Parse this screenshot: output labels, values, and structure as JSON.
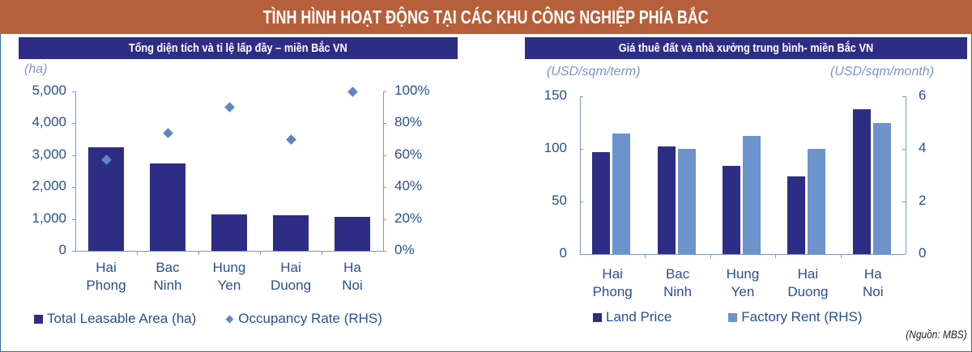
{
  "title": "TÌNH HÌNH HOẠT ĐỘNG TẠI CÁC KHU CÔNG NGHIỆP PHÍA BẮC",
  "source": "(Nguồn: MBS)",
  "colors": {
    "title_bg": "#b5603b",
    "subtitle_bg": "#2e2d85",
    "dark_bar": "#2e2d85",
    "light_bar": "#6d93cc",
    "diamond": "#5f86c4"
  },
  "left": {
    "subtitle": "Tổng diện tích và tỉ lệ lấp đầy – miền Bắc VN",
    "unit_left": "(ha)",
    "yticks_left": [
      "5,000",
      "4,000",
      "3,000",
      "2,000",
      "1,000",
      "0"
    ],
    "yticks_right": [
      "100%",
      "80%",
      "60%",
      "40%",
      "20%",
      "0%"
    ],
    "categories": [
      [
        "Hai",
        "Phong"
      ],
      [
        "Bac",
        "Ninh"
      ],
      [
        "Hung",
        "Yen"
      ],
      [
        "Hai",
        "Duong"
      ],
      [
        "Ha",
        "Noi"
      ]
    ],
    "legend": {
      "bar": "Total Leasable Area (ha)",
      "marker": "Occupancy Rate (RHS)"
    }
  },
  "right": {
    "subtitle": "Giá thuê đất và nhà xưởng trung bình- miền Bắc VN",
    "unit_left": "(USD/sqm/term)",
    "unit_right": "(USD/sqm/month)",
    "yticks_left": [
      "150",
      "100",
      "50",
      "0"
    ],
    "yticks_right": [
      "6",
      "4",
      "2",
      "0"
    ],
    "categories": [
      [
        "Hai",
        "Phong"
      ],
      [
        "Bac",
        "Ninh"
      ],
      [
        "Hung",
        "Yen"
      ],
      [
        "Hai",
        "Duong"
      ],
      [
        "Ha",
        "Noi"
      ]
    ],
    "legend": {
      "a": "Land Price",
      "b": "Factory Rent (RHS)"
    }
  },
  "chart_data": [
    {
      "type": "bar",
      "title": "Tổng diện tích và tỉ lệ lấp đầy – miền Bắc VN",
      "categories": [
        "Hai Phong",
        "Bac Ninh",
        "Hung Yen",
        "Hai Duong",
        "Ha Noi"
      ],
      "series": [
        {
          "name": "Total Leasable Area (ha)",
          "type": "bar",
          "axis": "left",
          "values": [
            3250,
            2740,
            1140,
            1120,
            1070
          ]
        },
        {
          "name": "Occupancy Rate (RHS)",
          "type": "scatter",
          "axis": "right",
          "values": [
            57,
            74,
            90,
            70,
            100
          ]
        }
      ],
      "ylabel": "(ha)",
      "ylim": [
        0,
        5000
      ],
      "y2lim": [
        0,
        100
      ],
      "y2format": "%",
      "grid": false,
      "legend_position": "bottom"
    },
    {
      "type": "bar",
      "title": "Giá thuê đất và nhà xưởng trung bình- miền Bắc VN",
      "categories": [
        "Hai Phong",
        "Bac Ninh",
        "Hung Yen",
        "Hai Duong",
        "Ha Noi"
      ],
      "series": [
        {
          "name": "Land Price",
          "axis": "left",
          "values": [
            97,
            102,
            84,
            74,
            138
          ]
        },
        {
          "name": "Factory Rent (RHS)",
          "axis": "right",
          "values": [
            4.6,
            4.0,
            4.5,
            4.0,
            5.0
          ]
        }
      ],
      "ylabel": "(USD/sqm/term)",
      "y2label": "(USD/sqm/month)",
      "ylim": [
        0,
        150
      ],
      "y2lim": [
        0,
        6
      ],
      "grid": false,
      "legend_position": "bottom"
    }
  ]
}
